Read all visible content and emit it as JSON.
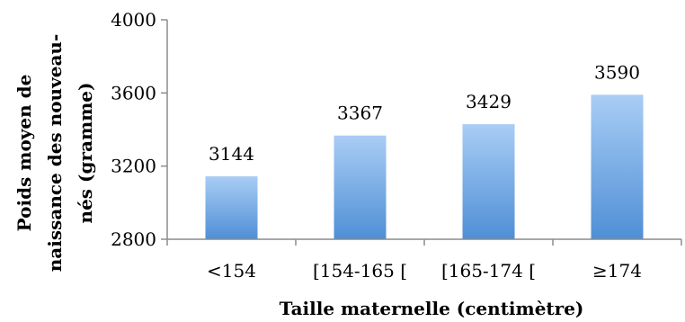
{
  "chart_data": {
    "type": "bar",
    "categories": [
      "<154",
      "[154-165 [",
      "[165-174 [",
      "≥174"
    ],
    "values": [
      3144,
      3367,
      3429,
      3590
    ],
    "data_labels": [
      "3144",
      "3367",
      "3429",
      "3590"
    ],
    "xlabel": "Taille maternelle (centimètre)",
    "ylabel_lines": [
      "Poids moyen de",
      "naissance des nouveau-",
      "nés (gramme)"
    ],
    "ylim": [
      2800,
      4000
    ],
    "yticks": [
      2800,
      3200,
      3600,
      4000
    ],
    "ytick_labels": [
      "2800",
      "3200",
      "3600",
      "4000"
    ],
    "grid": false,
    "legend": "none",
    "colors": {
      "bar_top": "#a9cdf5",
      "bar_bottom": "#4f8fd6",
      "axis": "#8c8c8c"
    }
  }
}
